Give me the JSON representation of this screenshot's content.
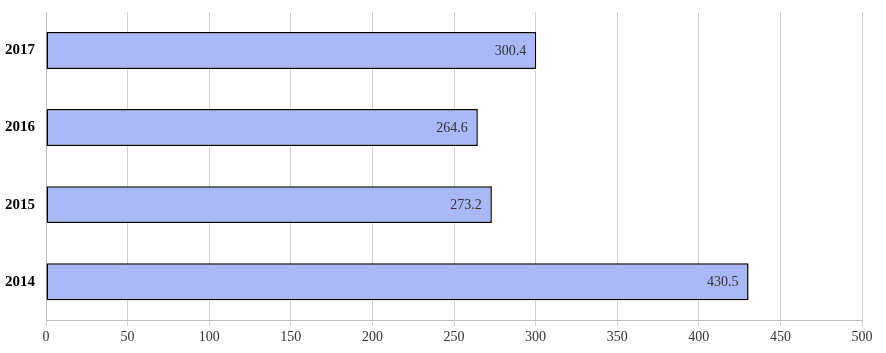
{
  "chart_data": {
    "type": "bar",
    "orientation": "horizontal",
    "categories": [
      "2017",
      "2016",
      "2015",
      "2014"
    ],
    "values": [
      300.4,
      264.6,
      273.2,
      430.5
    ],
    "color": "#a9b9f7",
    "xlim": [
      0,
      500
    ],
    "xticks": [
      0,
      50,
      100,
      150,
      200,
      250,
      300,
      350,
      400,
      450,
      500
    ],
    "grid": true,
    "data_labels": true
  }
}
